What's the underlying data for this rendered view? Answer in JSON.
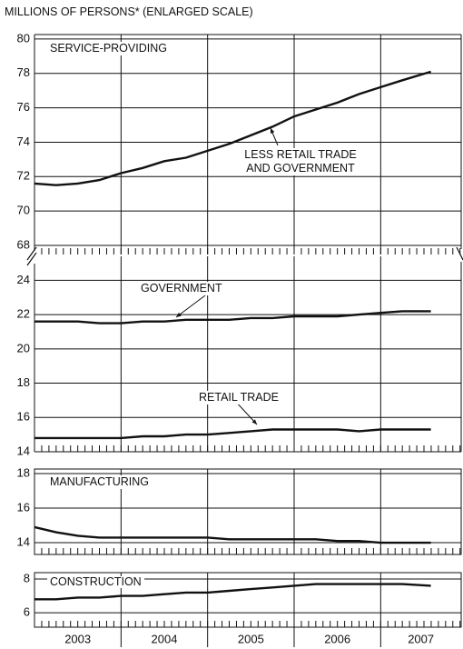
{
  "y_label": "MILLIONS OF PERSONS* (ENLARGED SCALE)",
  "chart_data": [
    {
      "type": "line",
      "title": "SERVICE-PROVIDING",
      "x": [
        2003.0,
        2003.25,
        2003.5,
        2003.75,
        2004.0,
        2004.25,
        2004.5,
        2004.75,
        2005.0,
        2005.25,
        2005.5,
        2005.75,
        2006.0,
        2006.25,
        2006.5,
        2006.75,
        2007.0,
        2007.25,
        2007.58
      ],
      "xlim": [
        2003,
        2007.93
      ],
      "xticks": [
        2004,
        2005,
        2006,
        2007
      ],
      "ylim": [
        67.47,
        80.26
      ],
      "yticks": [
        68,
        70,
        72,
        74,
        76,
        78,
        80
      ],
      "grid": true,
      "series": [
        {
          "name": "LESS RETAIL TRADE AND GOVERNMENT",
          "color": "#111111",
          "values": [
            71.6,
            71.5,
            71.6,
            71.8,
            72.2,
            72.5,
            72.9,
            73.1,
            73.5,
            73.9,
            74.4,
            74.9,
            75.5,
            75.9,
            76.3,
            76.8,
            77.2,
            77.6,
            78.1
          ]
        }
      ]
    },
    {
      "type": "line",
      "x": [
        2003.0,
        2003.25,
        2003.5,
        2003.75,
        2004.0,
        2004.25,
        2004.5,
        2004.75,
        2005.0,
        2005.25,
        2005.5,
        2005.75,
        2006.0,
        2006.25,
        2006.5,
        2006.75,
        2007.0,
        2007.25,
        2007.58
      ],
      "xlim": [
        2003,
        2007.93
      ],
      "xticks": [
        2004,
        2005,
        2006,
        2007
      ],
      "ylim": [
        14,
        25.4
      ],
      "yticks": [
        14,
        16,
        18,
        20,
        22,
        24
      ],
      "grid": true,
      "series": [
        {
          "name": "GOVERNMENT",
          "color": "#111111",
          "values": [
            21.6,
            21.6,
            21.6,
            21.5,
            21.5,
            21.6,
            21.6,
            21.7,
            21.7,
            21.7,
            21.8,
            21.8,
            21.9,
            21.9,
            21.9,
            22.0,
            22.1,
            22.2,
            22.2
          ]
        },
        {
          "name": "RETAIL TRADE",
          "color": "#111111",
          "values": [
            14.8,
            14.8,
            14.8,
            14.8,
            14.8,
            14.9,
            14.9,
            15.0,
            15.0,
            15.1,
            15.2,
            15.3,
            15.3,
            15.3,
            15.3,
            15.2,
            15.3,
            15.3,
            15.3
          ]
        }
      ]
    },
    {
      "type": "line",
      "title": "MANUFACTURING",
      "x": [
        2003.0,
        2003.25,
        2003.5,
        2003.75,
        2004.0,
        2004.25,
        2004.5,
        2004.75,
        2005.0,
        2005.25,
        2005.5,
        2005.75,
        2006.0,
        2006.25,
        2006.5,
        2006.75,
        2007.0,
        2007.25,
        2007.58
      ],
      "xlim": [
        2003,
        2007.93
      ],
      "xticks": [
        2004,
        2005,
        2006,
        2007
      ],
      "ylim": [
        13.32,
        18.26
      ],
      "yticks": [
        14,
        16,
        18
      ],
      "grid": true,
      "series": [
        {
          "name": "MANUFACTURING",
          "color": "#111111",
          "values": [
            14.9,
            14.6,
            14.4,
            14.3,
            14.3,
            14.3,
            14.3,
            14.3,
            14.3,
            14.2,
            14.2,
            14.2,
            14.2,
            14.2,
            14.1,
            14.1,
            14.0,
            14.0,
            14.0
          ]
        }
      ]
    },
    {
      "type": "line",
      "title": "CONSTRUCTION",
      "x": [
        2003.0,
        2003.25,
        2003.5,
        2003.75,
        2004.0,
        2004.25,
        2004.5,
        2004.75,
        2005.0,
        2005.25,
        2005.5,
        2005.75,
        2006.0,
        2006.25,
        2006.5,
        2006.75,
        2007.0,
        2007.25,
        2007.58
      ],
      "xlim": [
        2003,
        2007.93
      ],
      "xticks": [
        2004,
        2005,
        2006,
        2007
      ],
      "ylim": [
        5.14,
        8.38
      ],
      "yticks": [
        6,
        8
      ],
      "grid": true,
      "categories": [
        "2003",
        "2004",
        "2005",
        "2006",
        "2007"
      ],
      "series": [
        {
          "name": "CONSTRUCTION",
          "color": "#111111",
          "values": [
            6.8,
            6.8,
            6.9,
            6.9,
            7.0,
            7.0,
            7.1,
            7.2,
            7.2,
            7.3,
            7.4,
            7.5,
            7.6,
            7.7,
            7.7,
            7.7,
            7.7,
            7.7,
            7.6
          ]
        }
      ]
    }
  ]
}
